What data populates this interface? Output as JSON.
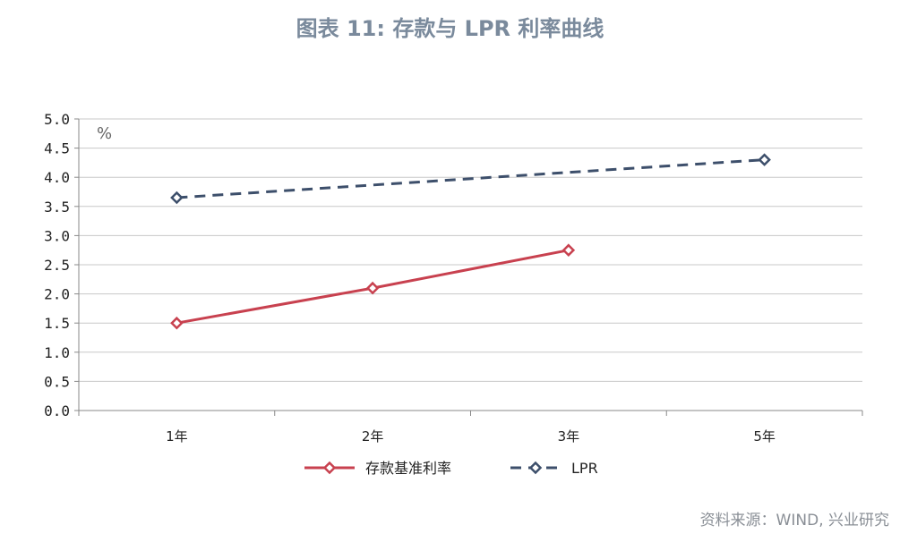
{
  "title": "图表 11: 存款与 LPR 利率曲线",
  "source": "资料来源：WIND, 兴业研究",
  "chart_data": {
    "type": "line",
    "categories": [
      "1年",
      "2年",
      "3年",
      "5年"
    ],
    "unit_label": "%",
    "ylim": [
      0,
      5
    ],
    "yticks": [
      "0.0",
      "0.5",
      "1.0",
      "1.5",
      "2.0",
      "2.5",
      "3.0",
      "3.5",
      "4.0",
      "4.5",
      "5.0"
    ],
    "grid": true,
    "legend_position": "bottom",
    "series": [
      {
        "name": "存款基准利率",
        "color": "#c8414f",
        "dash": false,
        "values": [
          1.5,
          2.1,
          2.75,
          null
        ]
      },
      {
        "name": "LPR",
        "color": "#3d4f6b",
        "dash": true,
        "values": [
          3.65,
          null,
          null,
          4.3
        ]
      }
    ]
  }
}
